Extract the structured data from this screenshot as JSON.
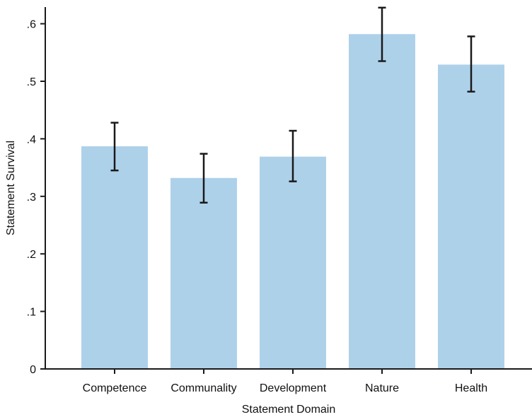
{
  "chart_data": {
    "type": "bar",
    "xlabel": "Statement Domain",
    "ylabel": "Statement Survival",
    "categories": [
      "Competence",
      "Communality",
      "Development",
      "Nature",
      "Health"
    ],
    "values": [
      0.387,
      0.332,
      0.369,
      0.582,
      0.529
    ],
    "error_low": [
      0.345,
      0.289,
      0.326,
      0.535,
      0.482
    ],
    "error_high": [
      0.428,
      0.374,
      0.414,
      0.628,
      0.578
    ],
    "ylim": [
      0,
      0.65
    ],
    "yticks": [
      0,
      0.1,
      0.2,
      0.3,
      0.4,
      0.5,
      0.6
    ],
    "ytick_labels": [
      "0",
      ".1",
      ".2",
      ".3",
      ".4",
      ".5",
      ".6"
    ],
    "grid": false,
    "colors": {
      "bar": "#aed1ea",
      "error_bar": "#1a1a1a",
      "axis": "#1a1a1a"
    }
  }
}
